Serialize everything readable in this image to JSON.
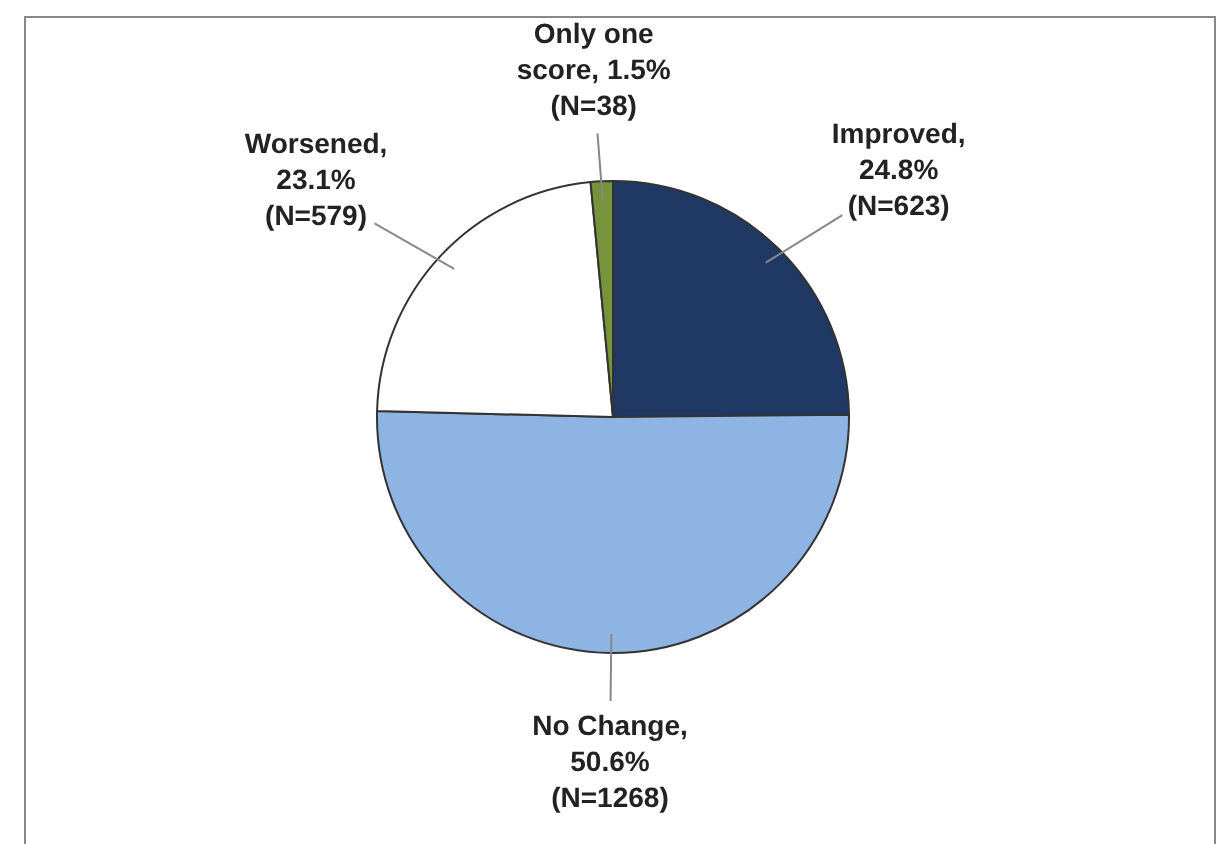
{
  "chart_data": {
    "type": "pie",
    "categories": [
      "Improved",
      "No Change",
      "Worsened",
      "Only one score"
    ],
    "values": [
      623,
      1268,
      579,
      38
    ],
    "value_labels": [
      ", 24.8% (N=623)",
      ", 50.6% (N=1268)",
      ", 23.1% (N=579)",
      ", 1.5% (N=38)"
    ],
    "colors": [
      "#1f3864",
      "#8eb4e3",
      "#ffffff",
      "#77933c"
    ],
    "legend": false
  }
}
